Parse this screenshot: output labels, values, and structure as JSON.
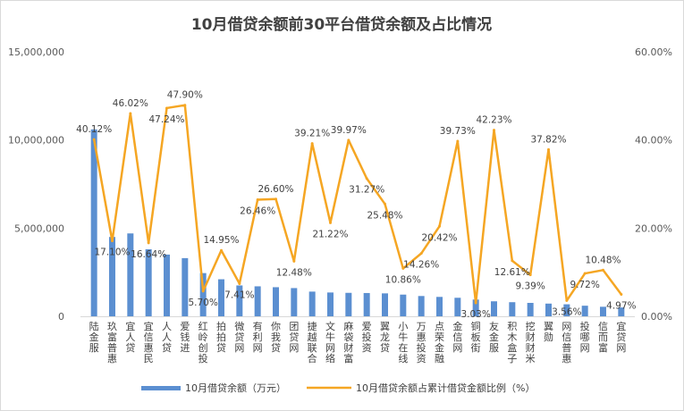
{
  "chart_data": {
    "type": "bar+line",
    "title": "10月借贷余额前30平台借贷余额及占比情况",
    "categories": [
      "陆金服",
      "玖富普惠",
      "宜人贷",
      "宜信惠民",
      "人人贷",
      "爱钱进",
      "红岭创投",
      "拍拍贷",
      "微贷网",
      "有利网",
      "你我贷",
      "团贷网",
      "捷越联合",
      "文牛网络",
      "麻袋财富",
      "爱投资",
      "翼龙贷",
      "小牛在线",
      "万惠投资",
      "点荣金融",
      "金信网",
      "铜板街",
      "友金服",
      "积木盒子",
      "挖财财米",
      "翼勋",
      "网信普惠",
      "投哪网",
      "信而富",
      "宜贷网"
    ],
    "series": [
      {
        "name": "10月借贷余额（万元）",
        "type": "bar",
        "axis": "left",
        "color": "#5B8FD1",
        "values": [
          10600000,
          4500000,
          4700000,
          3800000,
          3500000,
          3300000,
          2450000,
          2100000,
          1750000,
          1700000,
          1650000,
          1600000,
          1400000,
          1350000,
          1330000,
          1320000,
          1300000,
          1230000,
          1150000,
          1100000,
          1050000,
          950000,
          850000,
          800000,
          760000,
          720000,
          680000,
          600000,
          540000,
          500000
        ]
      },
      {
        "name": "10月借贷余额占累计借贷金额比例（%）",
        "type": "line",
        "axis": "right",
        "color": "#F5A623",
        "values": [
          40.12,
          17.1,
          46.02,
          16.64,
          47.24,
          47.9,
          5.7,
          14.95,
          7.41,
          26.46,
          26.6,
          12.48,
          39.21,
          21.22,
          39.97,
          31.27,
          25.48,
          10.86,
          14.26,
          20.42,
          39.73,
          3.03,
          42.23,
          12.61,
          9.39,
          37.82,
          3.56,
          9.72,
          10.48,
          4.97
        ],
        "labels": [
          "40.12%",
          "17.10%",
          "46.02%",
          "16.64%",
          "47.24%",
          "47.90%",
          "5.70%",
          "14.95%",
          "7.41%",
          "26.46%",
          "26.60%",
          "12.48%",
          "39.21%",
          "21.22%",
          "39.97%",
          "31.27%",
          "25.48%",
          "10.86%",
          "14.26%",
          "20.42%",
          "39.73%",
          "3.03%",
          "42.23%",
          "12.61%",
          "9.39%",
          "37.82%",
          "3.56%",
          "9.72%",
          "10.48%",
          "4.97%"
        ]
      }
    ],
    "left_axis": {
      "min": 0,
      "max": 15000000,
      "ticks": [
        0,
        5000000,
        10000000,
        15000000
      ],
      "tick_labels": [
        "0",
        "5,000,000",
        "10,000,000",
        "15,000,000"
      ]
    },
    "right_axis": {
      "min": 0,
      "max": 60,
      "ticks": [
        0,
        20,
        40,
        60
      ],
      "tick_labels": [
        "0.00%",
        "20.00%",
        "40.00%",
        "60.00%"
      ]
    },
    "legend": {
      "position": "bottom",
      "bar_label": "10月借贷余额（万元）",
      "line_label": "10月借贷余额占累计借贷金额比例（%）"
    }
  }
}
